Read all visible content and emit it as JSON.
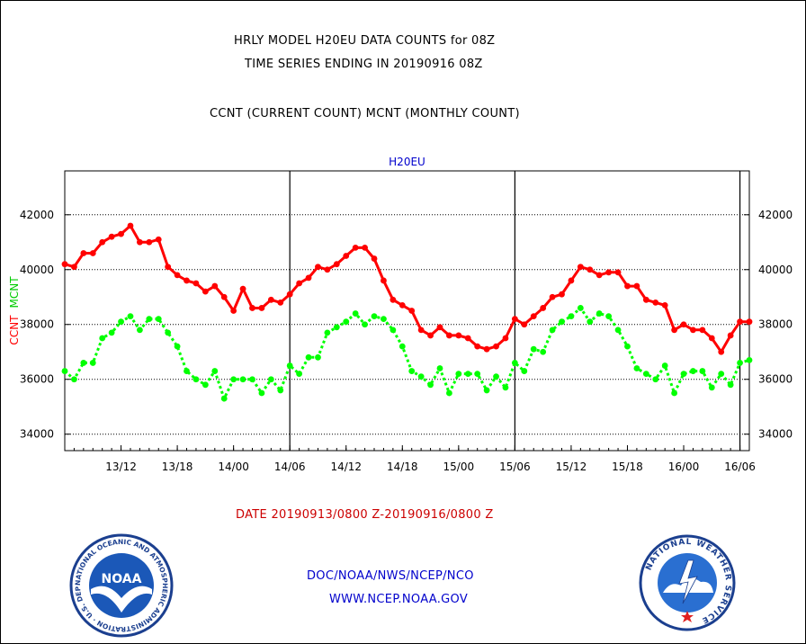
{
  "header": {
    "title_line1": "HRLY MODEL H20EU DATA COUNTS for 08Z",
    "title_line2": "TIME SERIES ENDING IN 20190916 08Z",
    "subtitle": "CCNT (CURRENT COUNT) MCNT (MONTHLY COUNT)"
  },
  "footer": {
    "date_range": "DATE 20190913/0800 Z-20190916/0800 Z",
    "org": "DOC/NOAA/NWS/NCEP/NCO",
    "url": "WWW.NCEP.NOAA.GOV",
    "noaa_logo_text": "NOAA",
    "noaa_ring_text": "NATIONAL OCEANIC AND ATMOSPHERIC ADMINISTRATION · U.S. DEPARTMENT OF COMMERCE ·",
    "nws_ring_text": "NATIONAL WEATHER SERVICE"
  },
  "colors": {
    "ccnt": "#ff0000",
    "mcnt": "#00ff00",
    "label_blue": "#0000cc",
    "grid": "#000000"
  },
  "chart_data": {
    "type": "line",
    "title": "H20EU",
    "ylabel_parts": [
      "CCNT",
      "MCNT"
    ],
    "ylim": [
      33400,
      43600
    ],
    "yticks": [
      34000,
      36000,
      38000,
      40000,
      42000
    ],
    "ytick_labels": [
      "34000",
      "36000",
      "38000",
      "40000",
      "42000"
    ],
    "x_hours_range": [
      7,
      80
    ],
    "xticks": [
      {
        "hour": 13,
        "label": "13/12"
      },
      {
        "hour": 19,
        "label": "13/18"
      },
      {
        "hour": 25,
        "label": "14/00"
      },
      {
        "hour": 31,
        "label": "14/06"
      },
      {
        "hour": 37,
        "label": "14/12"
      },
      {
        "hour": 43,
        "label": "14/18"
      },
      {
        "hour": 49,
        "label": "15/00"
      },
      {
        "hour": 55,
        "label": "15/06"
      },
      {
        "hour": 61,
        "label": "15/12"
      },
      {
        "hour": 67,
        "label": "15/18"
      },
      {
        "hour": 73,
        "label": "16/00"
      },
      {
        "hour": 79,
        "label": "16/06"
      }
    ],
    "day_separators": [
      31,
      55,
      79
    ],
    "grid": "horizontal dotted",
    "series": [
      {
        "name": "CCNT",
        "color": "#ff0000",
        "style": "solid",
        "x": [
          7,
          8,
          9,
          10,
          11,
          12,
          13,
          14,
          15,
          16,
          17,
          18,
          19,
          20,
          21,
          22,
          23,
          24,
          25,
          26,
          27,
          28,
          29,
          30,
          31,
          32,
          33,
          34,
          35,
          36,
          37,
          38,
          39,
          40,
          41,
          42,
          43,
          44,
          45,
          46,
          47,
          48,
          49,
          50,
          51,
          52,
          53,
          54,
          55,
          56,
          57,
          58,
          59,
          60,
          61,
          62,
          63,
          64,
          65,
          66,
          67,
          68,
          69,
          70,
          71,
          72,
          73,
          74,
          75,
          76,
          77,
          78,
          79,
          80
        ],
        "values": [
          40200,
          40100,
          40600,
          40600,
          41000,
          41200,
          41300,
          41600,
          41000,
          41000,
          41100,
          40100,
          39800,
          39600,
          39500,
          39200,
          39400,
          39000,
          38500,
          39300,
          38600,
          38600,
          38900,
          38800,
          39100,
          39500,
          39700,
          40100,
          40000,
          40200,
          40500,
          40800,
          40800,
          40400,
          39600,
          38900,
          38700,
          38500,
          37800,
          37600,
          37900,
          37600,
          37600,
          37500,
          37200,
          37100,
          37200,
          37500,
          38200,
          38000,
          38300,
          38600,
          39000,
          39100,
          39600,
          40100,
          40000,
          39800,
          39900,
          39900,
          39400,
          39400,
          38900,
          38800,
          38700,
          37800,
          38000,
          37800,
          37800,
          37500,
          37000,
          37600,
          38100,
          38100
        ],
        "value_precision": 100
      },
      {
        "name": "MCNT",
        "color": "#00ff00",
        "style": "dotted",
        "x": [
          7,
          8,
          9,
          10,
          11,
          12,
          13,
          14,
          15,
          16,
          17,
          18,
          19,
          20,
          21,
          22,
          23,
          24,
          25,
          26,
          27,
          28,
          29,
          30,
          31,
          32,
          33,
          34,
          35,
          36,
          37,
          38,
          39,
          40,
          41,
          42,
          43,
          44,
          45,
          46,
          47,
          48,
          49,
          50,
          51,
          52,
          53,
          54,
          55,
          56,
          57,
          58,
          59,
          60,
          61,
          62,
          63,
          64,
          65,
          66,
          67,
          68,
          69,
          70,
          71,
          72,
          73,
          74,
          75,
          76,
          77,
          78,
          79,
          80
        ],
        "values": [
          36300,
          36000,
          36600,
          36600,
          37500,
          37700,
          38100,
          38300,
          37800,
          38200,
          38200,
          37700,
          37200,
          36300,
          36000,
          35800,
          36300,
          35300,
          36000,
          36000,
          36000,
          35500,
          36000,
          35600,
          36500,
          36200,
          36800,
          36800,
          37700,
          37900,
          38100,
          38400,
          38000,
          38300,
          38200,
          37800,
          37200,
          36300,
          36100,
          35800,
          36400,
          35500,
          36200,
          36200,
          36200,
          35600,
          36100,
          35700,
          36600,
          36300,
          37100,
          37000,
          37800,
          38100,
          38300,
          38600,
          38100,
          38400,
          38300,
          37800,
          37200,
          36400,
          36200,
          36000,
          36500,
          35500,
          36200,
          36300,
          36300,
          35700,
          36200,
          35800,
          36600,
          36700
        ],
        "value_precision": 100
      }
    ]
  }
}
